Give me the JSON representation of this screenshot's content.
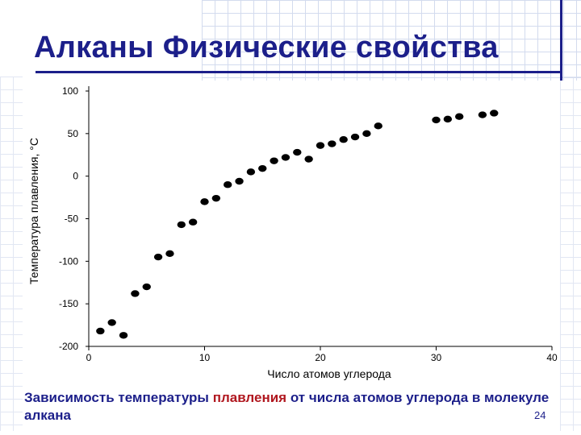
{
  "slide": {
    "title": "Алканы Физические свойства",
    "caption_part1": "Зависимость температуры ",
    "caption_highlight": "плавления",
    "caption_part2": " от числа атомов углерода в молекуле алкана",
    "page_number": "24"
  },
  "colors": {
    "title": "#1c1f8a",
    "highlight": "#b0171f",
    "points": "#000000"
  },
  "chart_data": {
    "type": "scatter",
    "title": "",
    "xlabel": "Число атомов углерода",
    "ylabel": "Температура плавления, °С",
    "xlim": [
      0,
      40
    ],
    "ylim": [
      -200,
      100
    ],
    "xticks": [
      0,
      10,
      20,
      30,
      40
    ],
    "yticks": [
      100,
      50,
      0,
      -50,
      -100,
      -150,
      -200
    ],
    "grid": false,
    "series": [
      {
        "x": [
          1,
          2,
          3,
          4,
          5,
          6,
          7,
          8,
          9,
          10,
          11,
          12,
          13,
          14,
          15,
          16,
          17,
          18,
          19,
          20,
          21,
          22,
          23,
          24,
          25,
          30,
          31,
          32,
          34,
          35
        ],
        "y": [
          -182,
          -172,
          -187,
          -138,
          -130,
          -95,
          -91,
          -57,
          -54,
          -30,
          -26,
          -10,
          -6,
          5,
          9,
          18,
          22,
          28,
          20,
          36,
          38,
          43,
          46,
          50,
          59,
          66,
          67,
          70,
          72,
          74
        ]
      }
    ]
  }
}
